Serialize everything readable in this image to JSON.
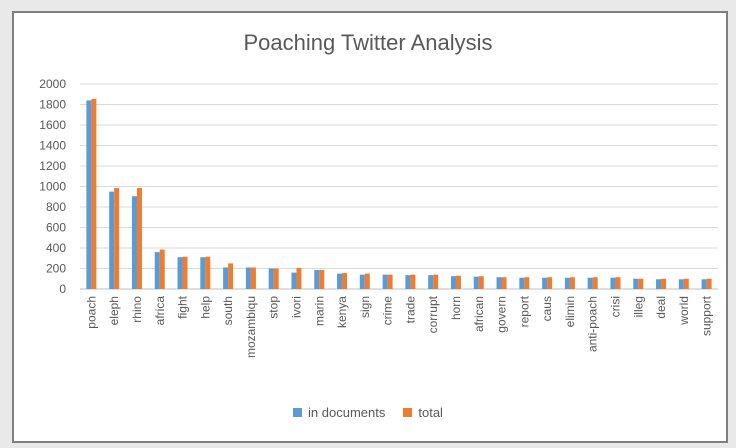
{
  "chart_data": {
    "type": "bar",
    "title": "Poaching Twitter Analysis",
    "categories": [
      "poach",
      "eleph",
      "rhino",
      "africa",
      "fight",
      "help",
      "south",
      "mozambiqu",
      "stop",
      "ivori",
      "marin",
      "kenya",
      "sign",
      "crime",
      "trade",
      "corrupt",
      "horn",
      "african",
      "govern",
      "report",
      "caus",
      "elimin",
      "anti-poach",
      "crisi",
      "illeg",
      "deal",
      "world",
      "support"
    ],
    "series": [
      {
        "name": "in documents",
        "color": "#5b9bd5",
        "values": [
          1840,
          950,
          905,
          360,
          310,
          310,
          210,
          210,
          200,
          160,
          185,
          150,
          140,
          140,
          135,
          135,
          125,
          120,
          115,
          110,
          110,
          110,
          110,
          110,
          100,
          95,
          95,
          95
        ]
      },
      {
        "name": "total",
        "color": "#ed7d31",
        "values": [
          1855,
          985,
          985,
          385,
          315,
          315,
          250,
          210,
          200,
          205,
          185,
          155,
          150,
          140,
          140,
          140,
          130,
          125,
          115,
          115,
          115,
          115,
          115,
          115,
          100,
          100,
          100,
          100
        ]
      }
    ],
    "ylim": [
      0,
      2000
    ],
    "yticks": [
      "0",
      "200",
      "400",
      "600",
      "800",
      "1000",
      "1200",
      "1400",
      "1600",
      "1800",
      "2000"
    ],
    "grid": true,
    "legend_position": "bottom"
  }
}
